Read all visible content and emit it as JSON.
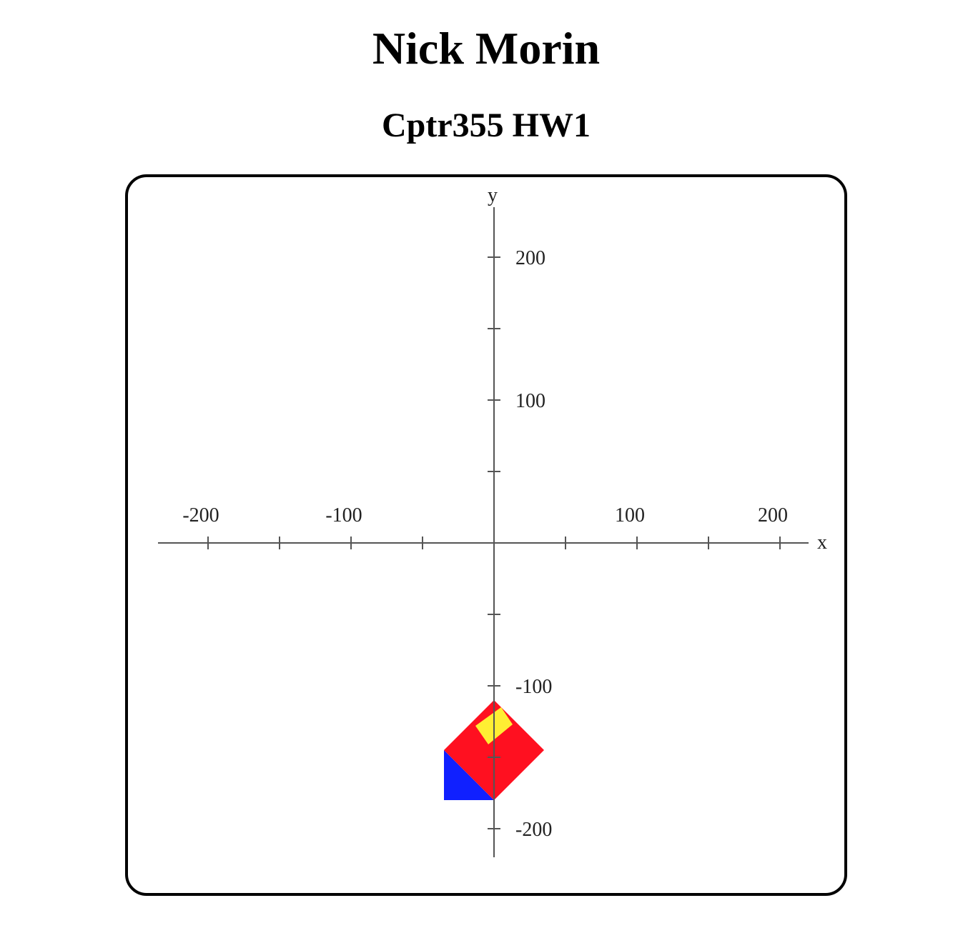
{
  "header": {
    "title": "Nick Morin",
    "subtitle": "Cptr355 HW1"
  },
  "colors": {
    "axis": "#555555",
    "label": "#222222",
    "red": "#ff1020",
    "blue": "#1020ff",
    "yellow": "#ffee33"
  },
  "chart_data": {
    "type": "diagram",
    "x_axis": {
      "label": "x",
      "range": [
        -235,
        220
      ],
      "ticks": [
        -200,
        -150,
        -100,
        -50,
        0,
        50,
        100,
        150,
        200
      ],
      "tick_labels": [
        -200,
        -100,
        100,
        200
      ]
    },
    "y_axis": {
      "label": "y",
      "range": [
        -220,
        235
      ],
      "ticks": [
        -200,
        -150,
        -100,
        -50,
        0,
        50,
        100,
        150,
        200
      ],
      "tick_labels": [
        -200,
        -100,
        100,
        200
      ]
    },
    "shapes": [
      {
        "name": "blue-triangle",
        "color": "blue",
        "points": [
          [
            -35,
            -145
          ],
          [
            -35,
            -180
          ],
          [
            0,
            -180
          ]
        ]
      },
      {
        "name": "red-square",
        "color": "red",
        "points": [
          [
            0,
            -110
          ],
          [
            35,
            -145
          ],
          [
            0,
            -180
          ],
          [
            -35,
            -145
          ]
        ]
      },
      {
        "name": "yellow-square",
        "color": "yellow",
        "points": [
          [
            5,
            -115
          ],
          [
            13,
            -127
          ],
          [
            -4,
            -141
          ],
          [
            -13,
            -128
          ]
        ]
      }
    ]
  }
}
